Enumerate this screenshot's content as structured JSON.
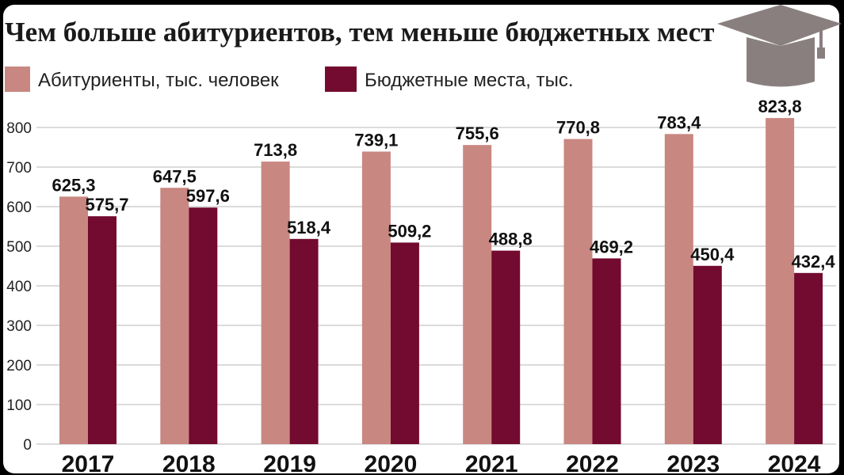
{
  "colors": {
    "applicants": "#c98781",
    "budget": "#730a2f",
    "cap": "#8a7f7f"
  },
  "icons": {
    "header": "graduation-cap-icon"
  },
  "chart_data": {
    "type": "bar",
    "title": "Чем больше абитуриентов, тем меньше бюджетных мест",
    "xlabel": "",
    "ylabel": "",
    "categories": [
      "2017",
      "2018",
      "2019",
      "2020",
      "2021",
      "2022",
      "2023",
      "2024"
    ],
    "series": [
      {
        "name": "Абитуриенты, тыс. человек",
        "values": [
          625.3,
          647.5,
          713.8,
          739.1,
          755.6,
          770.8,
          783.4,
          823.8
        ],
        "labels": [
          "625,3",
          "647,5",
          "713,8",
          "739,1",
          "755,6",
          "770,8",
          "783,4",
          "823,8"
        ]
      },
      {
        "name": "Бюджетные места, тыс.",
        "values": [
          575.7,
          597.6,
          518.4,
          509.2,
          488.8,
          469.2,
          450.4,
          432.4
        ],
        "labels": [
          "575,7",
          "597,6",
          "518,4",
          "509,2",
          "488,8",
          "469,2",
          "450,4",
          "432,4"
        ]
      }
    ],
    "yticks": [
      "0",
      "100",
      "200",
      "300",
      "400",
      "500",
      "600",
      "700",
      "800"
    ],
    "ylim": [
      0,
      800
    ],
    "grid": true,
    "legend": "top-left"
  }
}
